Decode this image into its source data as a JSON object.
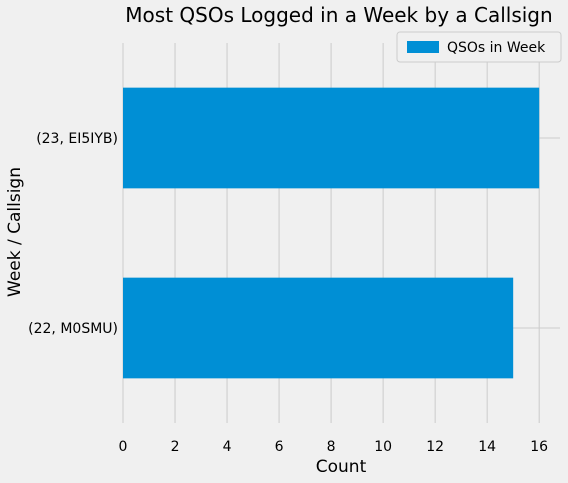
{
  "chart_data": {
    "type": "bar",
    "orientation": "horizontal",
    "title": "Most QSOs Logged in a Week by a Callsign",
    "xlabel": "Count",
    "ylabel": "Week / Callsign",
    "categories": [
      "(22, M0SMU)",
      "(23, EI5IYB)"
    ],
    "series": [
      {
        "name": "QSOs in Week",
        "values": [
          15,
          16
        ],
        "color": "#008fd5"
      }
    ],
    "xlim": [
      0,
      16.8
    ],
    "xticks": [
      0,
      2,
      4,
      6,
      8,
      10,
      12,
      14,
      16
    ],
    "grid": true,
    "legend_position": "top-right",
    "background": "#f0f0f0"
  }
}
